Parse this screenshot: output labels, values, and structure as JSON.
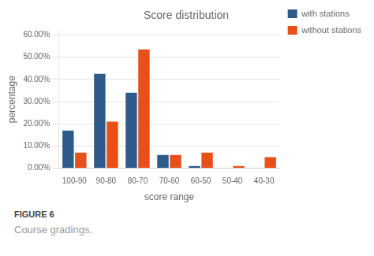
{
  "chart_data": {
    "type": "bar",
    "title": "Score distribution",
    "xlabel": "score range",
    "ylabel": "percentage",
    "categories": [
      "100-90",
      "90-80",
      "80-70",
      "70-60",
      "60-50",
      "50-40",
      "40-30"
    ],
    "series": [
      {
        "name": "with stations",
        "color": "#2E5B8A",
        "values": [
          0.17,
          0.425,
          0.34,
          0.06,
          0.01,
          0.0,
          0.0
        ]
      },
      {
        "name": "without stations",
        "color": "#E8501A",
        "values": [
          0.07,
          0.21,
          0.535,
          0.06,
          0.07,
          0.01,
          0.05
        ]
      }
    ],
    "ylim": [
      0,
      0.62
    ],
    "yticks": [
      {
        "value": 0.0,
        "label": "0.00%"
      },
      {
        "value": 0.1,
        "label": "10.00%"
      },
      {
        "value": 0.2,
        "label": "20.00%"
      },
      {
        "value": 0.3,
        "label": "30.00%"
      },
      {
        "value": 0.4,
        "label": "40.00%"
      },
      {
        "value": 0.5,
        "label": "50.00%"
      },
      {
        "value": 0.6,
        "label": "60.00%"
      }
    ],
    "grid": true,
    "legend": "right",
    "annotations": [
      "FIGURE 6",
      "Course gradings."
    ]
  }
}
